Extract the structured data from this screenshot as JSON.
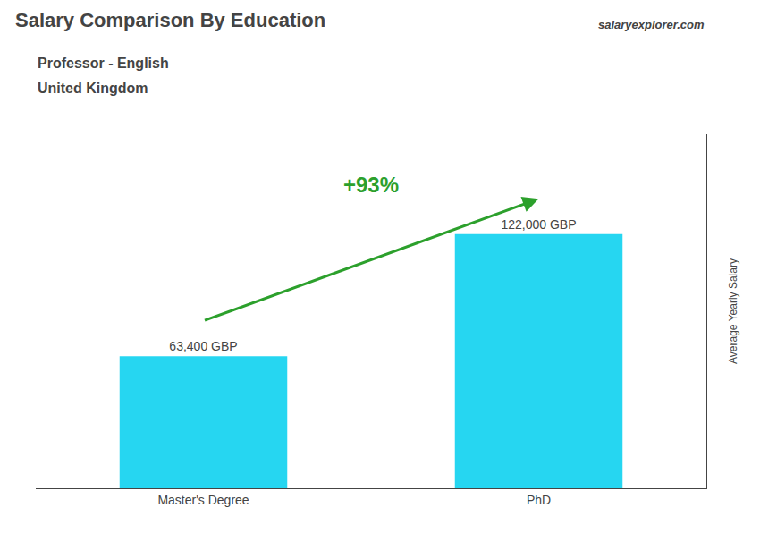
{
  "chart_data": {
    "type": "bar",
    "title": "Salary Comparison By Education",
    "subtitle": [
      "Professor - English",
      "United Kingdom"
    ],
    "annotations": [
      "+93%",
      "salaryexplorer.com"
    ],
    "ylabel": "Average Yearly Salary",
    "categories": [
      "Master's Degree",
      "PhD"
    ],
    "values": [
      63400,
      122000
    ],
    "value_labels": [
      "63,400 GBP",
      "122,000 GBP"
    ],
    "data_labels": true,
    "color": "#00CFEE",
    "ylim": [
      0,
      170000
    ],
    "grid": false,
    "tick_labels": "x"
  }
}
